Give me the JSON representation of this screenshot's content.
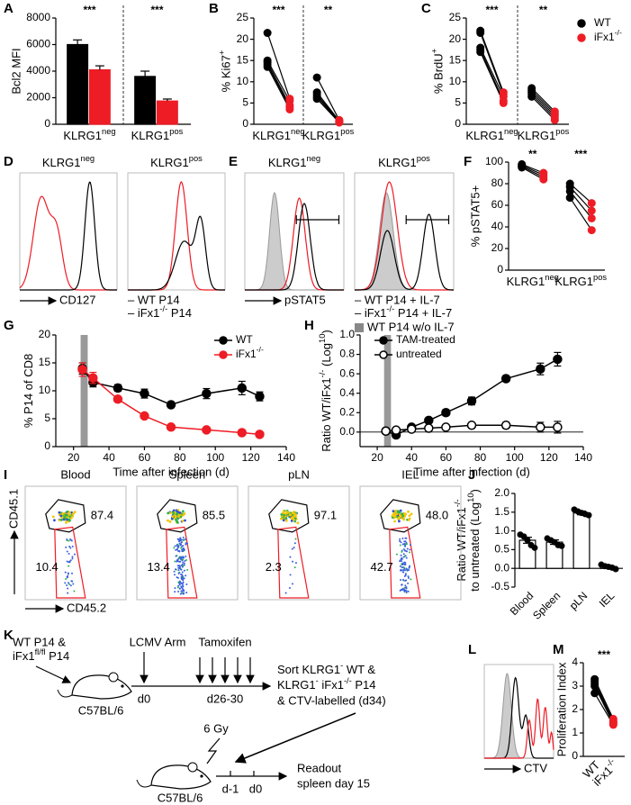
{
  "chart_data": [
    {
      "type": "bar",
      "panel": "A",
      "ylabel": "Bcl2 MFI",
      "categories": [
        [
          "KLRG1",
          "neg"
        ],
        [
          "KLRG1",
          "pos"
        ]
      ],
      "series": [
        {
          "color": "#000000",
          "values": [
            6000,
            3600
          ],
          "errors": [
            350,
            400
          ]
        },
        {
          "color": "#ee1c25",
          "values": [
            4100,
            1750
          ],
          "errors": [
            300,
            150
          ]
        }
      ],
      "ylim": [
        0,
        8000
      ],
      "yticks": [
        0,
        2000,
        4000,
        6000,
        8000
      ],
      "annotations": [
        "***",
        "***"
      ],
      "divider": true
    },
    {
      "type": "paired",
      "panel": "B",
      "ylabel": [
        "% Ki67",
        "+"
      ],
      "categories": [
        [
          "KLRG1",
          "neg"
        ],
        [
          "KLRG1",
          "pos"
        ]
      ],
      "series": [
        {
          "color": "#000000",
          "values": [
            [
              21.5,
              15,
              14.5,
              14,
              13.5
            ],
            [
              11,
              7.5,
              7,
              6.5,
              6
            ]
          ]
        },
        {
          "color": "#ee1c25",
          "values": [
            [
              6,
              5.5,
              4.5,
              4,
              3.5
            ],
            [
              1,
              0.8,
              0.6,
              0.5,
              0.4
            ]
          ]
        }
      ],
      "ylim": [
        0,
        25
      ],
      "yticks": [
        0,
        5,
        10,
        15,
        20,
        25
      ],
      "annotations": [
        "***",
        "**"
      ],
      "divider": true
    },
    {
      "type": "paired",
      "panel": "C",
      "ylabel": [
        "% BrdU",
        "+"
      ],
      "categories": [
        [
          "KLRG1",
          "neg"
        ],
        [
          "KLRG1",
          "pos"
        ]
      ],
      "series": [
        {
          "name": "WT",
          "color": "#000000",
          "values": [
            [
              22,
              21.5,
              18,
              17.5,
              17
            ],
            [
              8.5,
              8,
              7.5,
              7,
              6.5
            ]
          ]
        },
        {
          "name": [
            "iFx1",
            "-/-"
          ],
          "color": "#ee1c25",
          "values": [
            [
              7.5,
              7,
              6.5,
              5.5,
              5
            ],
            [
              3,
              2.5,
              2,
              1.5,
              1
            ]
          ]
        }
      ],
      "ylim": [
        0,
        25
      ],
      "yticks": [
        0,
        5,
        10,
        15,
        20,
        25
      ],
      "annotations": [
        "***",
        "**"
      ],
      "divider": true,
      "legend": "right"
    },
    {
      "type": "paired",
      "panel": "F",
      "ylabel": "% pSTAT5+",
      "categories": [
        [
          "KLRG1",
          "neg"
        ],
        [
          "KLRG1",
          "pos"
        ]
      ],
      "series": [
        {
          "color": "#000000",
          "values": [
            [
              98,
              97,
              96,
              95
            ],
            [
              80,
              77,
              73,
              67
            ]
          ]
        },
        {
          "color": "#ee1c25",
          "values": [
            [
              90,
              88,
              86,
              84
            ],
            [
              62,
              55,
              48,
              37
            ]
          ]
        }
      ],
      "ylim": [
        0,
        100
      ],
      "yticks": [
        0,
        20,
        40,
        60,
        80,
        100
      ],
      "annotations": [
        "**",
        "***"
      ]
    },
    {
      "type": "line",
      "panel": "G",
      "ylabel": "% P14 of CD8",
      "xlabel": "Time after infection (d)",
      "x": [
        25,
        31,
        45,
        60,
        75,
        95,
        115,
        125
      ],
      "series": [
        {
          "name": "WT",
          "color": "#000000",
          "marker": "filled",
          "values": [
            14,
            11.5,
            10.5,
            9.5,
            7.5,
            9.5,
            10.5,
            9
          ],
          "errors": [
            1,
            0.8,
            0.6,
            0.8,
            0.5,
            0.9,
            1.2,
            0.8
          ]
        },
        {
          "name": [
            "iFx1",
            "-/-"
          ],
          "color": "#ee1c25",
          "marker": "filled",
          "values": [
            13.8,
            12.3,
            8.5,
            5.5,
            3.5,
            3,
            2.5,
            2.2
          ],
          "errors": [
            1.2,
            1,
            0.5,
            0.4,
            0.3,
            0.2,
            0.2,
            0.2
          ]
        }
      ],
      "xlim": [
        10,
        140
      ],
      "xticks": [
        20,
        40,
        60,
        80,
        100,
        120,
        140
      ],
      "ylim": [
        0,
        20
      ],
      "yticks": [
        0,
        5,
        10,
        15,
        20
      ],
      "band": [
        24,
        28
      ],
      "legend": "upper right"
    },
    {
      "type": "line",
      "panel": "H",
      "ylabel": [
        "Ratio WT/iFx1",
        "-/-",
        " (Log",
        "10",
        ")"
      ],
      "xlabel": "Time after infection (d)",
      "x": [
        25,
        31,
        40,
        50,
        60,
        75,
        95,
        115,
        125
      ],
      "series": [
        {
          "name": "TAM-treated",
          "color": "#000000",
          "marker": "filled",
          "values": [
            0.01,
            -0.03,
            0.05,
            0.12,
            0.2,
            0.32,
            0.55,
            0.65,
            0.75
          ],
          "errors": [
            0.02,
            0.02,
            0.02,
            0.02,
            0.03,
            0.04,
            0.03,
            0.06,
            0.07
          ]
        },
        {
          "name": "untreated",
          "color": "#000000",
          "marker": "open",
          "values": [
            0.01,
            0.02,
            0.03,
            0.04,
            0.05,
            0.07,
            0.07,
            0.05,
            0.05
          ],
          "errors": [
            0.02,
            0.02,
            0.02,
            0.02,
            0.02,
            0.02,
            0.03,
            0.05,
            0.06
          ]
        }
      ],
      "xlim": [
        10,
        140
      ],
      "xticks": [
        20,
        40,
        60,
        80,
        100,
        120,
        140
      ],
      "ylim": [
        -0.15,
        1.0
      ],
      "yticks": [
        {
          "value": 0,
          "label": "0.0"
        },
        0.2,
        0.4,
        0.6,
        0.8,
        {
          "value": 1,
          "label": "1.0"
        }
      ],
      "band": [
        24,
        28
      ],
      "legend": "upper left"
    },
    {
      "type": "bar",
      "panel": "J",
      "ylabel": [
        [
          "Ratio WT/iFx1",
          "-/-"
        ],
        [
          "to untreated (Log",
          "10",
          ")"
        ]
      ],
      "categories": [
        "Blood",
        "Spleen",
        "pLN",
        "IEL"
      ],
      "series": [
        {
          "color": "#ffffff",
          "edgecolor": "#000000",
          "values": [
            0.75,
            0.7,
            1.48,
            0.05
          ],
          "errors": [
            0.08,
            0.06,
            0.05,
            0.03
          ],
          "points": [
            [
              0.9,
              0.85,
              0.75,
              0.62,
              0.55
            ],
            [
              0.8,
              0.75,
              0.7,
              0.62,
              0.6
            ],
            [
              1.57,
              1.52,
              1.48,
              1.45,
              1.42
            ],
            [
              0.1,
              0.06,
              0.04,
              0.02,
              -0.02
            ]
          ]
        }
      ],
      "ylim": [
        -0.5,
        2.0
      ],
      "yticks": [
        -0.5,
        {
          "value": 0,
          "label": "0.0"
        },
        0.5,
        {
          "value": 1,
          "label": "1.0"
        },
        1.5,
        {
          "value": 2,
          "label": "2.0"
        }
      ],
      "rotate_labels": true
    },
    {
      "type": "paired",
      "panel": "M",
      "ylabel": "Proliferation Index",
      "series": [
        {
          "name": "WT",
          "color": "#000000",
          "values": [
            [
              3.3,
              3.2,
              3.1,
              3.0,
              2.7
            ]
          ]
        },
        {
          "name": [
            "iFx1",
            "-/-"
          ],
          "color": "#ee1c25",
          "values": [
            [
              1.6,
              1.5,
              1.45,
              1.4,
              1.35
            ]
          ]
        }
      ],
      "ylim": [
        0,
        4
      ],
      "yticks": [
        0,
        1,
        2,
        3,
        4
      ],
      "annotations": [
        "***"
      ],
      "rotate_labels": true
    }
  ],
  "histograms": [
    {
      "panel": "D",
      "titles": [
        [
          "KLRG1",
          "neg"
        ],
        [
          "KLRG1",
          "pos"
        ]
      ],
      "xlabel": "CD127",
      "legend": [
        "– WT P14",
        [
          "– iFx1",
          "-/-",
          " P14"
        ]
      ]
    },
    {
      "panel": "E",
      "titles": [
        [
          "KLRG1",
          "neg"
        ],
        [
          "KLRG1",
          "pos"
        ]
      ],
      "xlabel": "pSTAT5",
      "legend": [
        "– WT P14 + IL-7",
        [
          "– iFx1",
          "-/-",
          " P14 + IL-7"
        ],
        "WT P14 w/o IL-7"
      ]
    },
    {
      "panel": "L",
      "xlabel": "CTV"
    }
  ],
  "flow": {
    "panel": "I",
    "ylabel": "CD45.1",
    "xlabel": "CD45.2",
    "plots": [
      {
        "title": "Blood",
        "upper": "87.4",
        "lower": "10.4"
      },
      {
        "title": "Spleen",
        "upper": "85.5",
        "lower": "13.4"
      },
      {
        "title": "pLN",
        "upper": "97.1",
        "lower": "2.3"
      },
      {
        "title": "IEL",
        "upper": "48.0",
        "lower": "42.7"
      }
    ]
  },
  "diagram": {
    "panel": "K",
    "donor": "WT P14 &",
    "donor2": [
      "iFx1",
      "fl/fl",
      " P14"
    ],
    "host": "C57BL/6",
    "infection": "LCMV Arm",
    "day0": "d0",
    "treatment": "Tamoxifen",
    "treatment_days": "d26-30",
    "sort": [
      "Sort KLRG1",
      "-",
      " WT &"
    ],
    "sort2": [
      "KLRG1",
      "-",
      " iFx1",
      "-/-",
      " P14"
    ],
    "sort3": "& CTV-labelled (d34)",
    "irradiation": "6 Gy",
    "recipient": "C57BL/6",
    "transfer_prev": "d-1",
    "transfer_day": "d0",
    "readout": "Readout",
    "readout2": "spleen day 15"
  }
}
